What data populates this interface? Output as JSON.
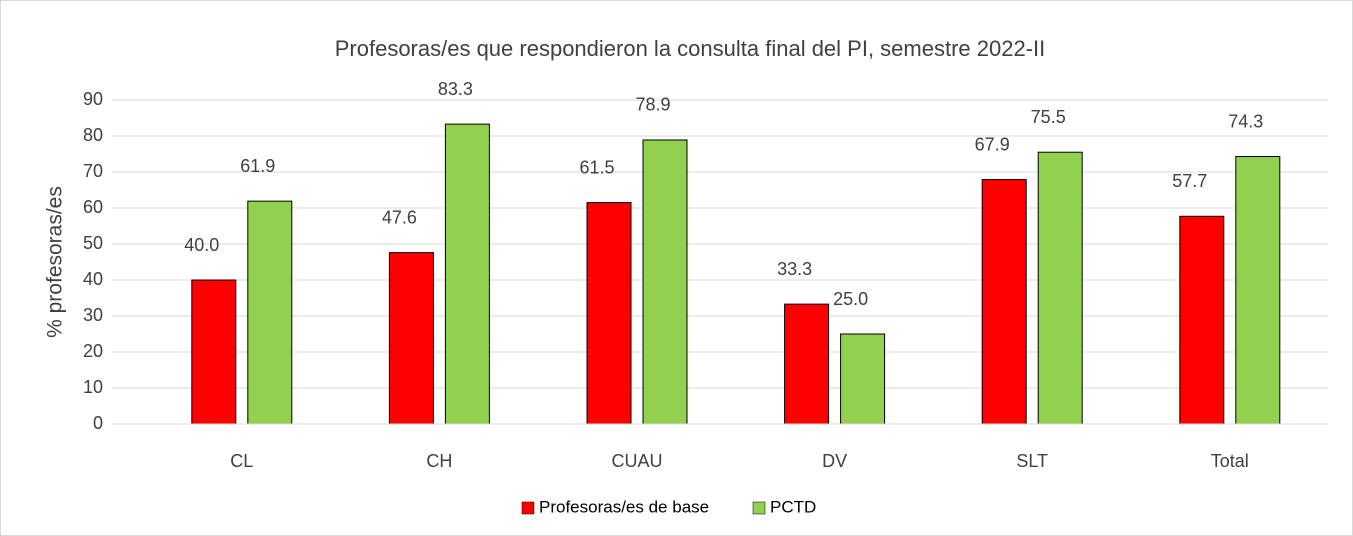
{
  "chart_data": {
    "type": "bar",
    "title": "Profesoras/es que respondieron la consulta final del PI, semestre 2022-II",
    "y_label": "% profesoras/es",
    "categories": [
      "CL",
      "CH",
      "CUAU",
      "DV",
      "SLT",
      "Total"
    ],
    "series": [
      {
        "name": "Profesoras/es de base",
        "color": "#ff0000",
        "values": [
          40.0,
          47.6,
          61.5,
          33.3,
          67.9,
          57.7
        ],
        "value_labels": [
          "40.0",
          "47.6",
          "61.5",
          "33.3",
          "67.9",
          "57.7"
        ]
      },
      {
        "name": "PCTD",
        "color": "#92d050",
        "values": [
          61.9,
          83.3,
          78.9,
          25.0,
          75.5,
          74.3
        ],
        "value_labels": [
          "61.9",
          "83.3",
          "78.9",
          "25.0",
          "75.5",
          "74.3"
        ]
      }
    ],
    "ylim": [
      0,
      90
    ],
    "yticks": [
      0,
      10,
      20,
      30,
      40,
      50,
      60,
      70,
      80,
      90
    ],
    "grid": true,
    "legend": "bottom"
  }
}
